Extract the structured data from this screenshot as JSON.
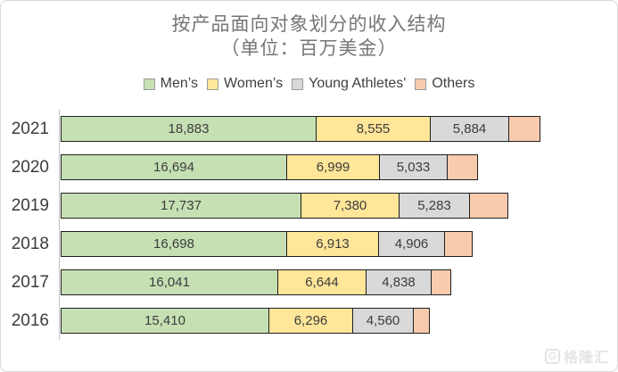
{
  "chart_data": {
    "type": "bar",
    "orientation": "horizontal",
    "stacked": true,
    "title": "按产品面向对象划分的收入结构",
    "subtitle": "（单位：百万美金）",
    "unit": "百万美金",
    "legend_position": "top",
    "grid": false,
    "bar_border_color": "#1f1f1f",
    "axis_line_color": "#c3c3c3",
    "categories": [
      "2021",
      "2020",
      "2019",
      "2018",
      "2017",
      "2016"
    ],
    "series": [
      {
        "name": "Men’s",
        "color": "#c6e0b4",
        "data_labels_shown": true,
        "values": [
          18883,
          16694,
          17737,
          16698,
          16041,
          15410
        ]
      },
      {
        "name": "Women’s",
        "color": "#ffe699",
        "data_labels_shown": true,
        "values": [
          8555,
          6999,
          7380,
          6913,
          6644,
          6296
        ]
      },
      {
        "name": "Young Athletes'",
        "color": "#d9d9d9",
        "data_labels_shown": true,
        "values": [
          5884,
          5033,
          5283,
          4906,
          4838,
          4560
        ]
      },
      {
        "name": "Others",
        "color": "#f8cbad",
        "data_labels_shown": false,
        "values_estimated": true,
        "values": [
          2400,
          2300,
          2900,
          2100,
          1500,
          1250
        ]
      }
    ]
  },
  "watermark": {
    "logo_letter": "G",
    "text": "格隆汇"
  }
}
